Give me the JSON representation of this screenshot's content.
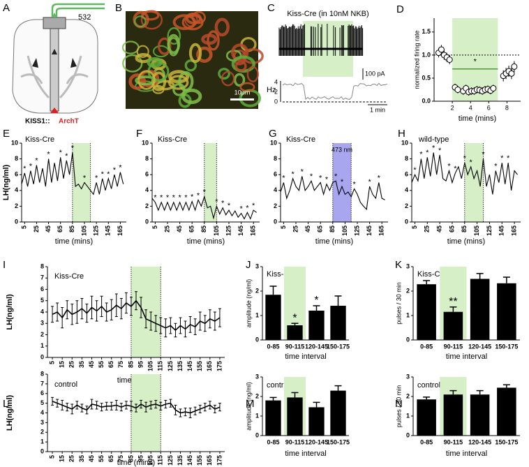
{
  "panels": {
    "A": {
      "letter": "A",
      "wavelength": "532",
      "label_gene": "KISS1::",
      "label_opsin": "ArchT"
    },
    "B": {
      "letter": "B",
      "scale": "10μm"
    },
    "C": {
      "letter": "C",
      "title": "Kiss-Cre (in 10nM NKB)",
      "current_scale": "100 pA",
      "rate_unit": "Hz",
      "rate_ticks": [
        4,
        2,
        0
      ],
      "time_scale": "1 min"
    }
  },
  "chart_data": [
    {
      "type": "scatter",
      "panel": "D",
      "ylabel": "normalized firing rate",
      "xlabel": "time (mins)",
      "xlim": [
        0,
        9.5
      ],
      "xticks": [
        2,
        4,
        6,
        8
      ],
      "ylim": [
        0,
        1.8
      ],
      "yticks": [
        {
          "value": 0,
          "label": "0.0"
        },
        0.5,
        {
          "value": 1,
          "label": "1.0"
        },
        1.5
      ],
      "shade": [
        2,
        7
      ],
      "shade_color": "#d6efc6",
      "dashed_line": 1,
      "mean_line": {
        "value": 0.7,
        "from": 2,
        "to": 7,
        "color": "#4a9a3a"
      },
      "annotations": [
        {
          "x": 4.5,
          "y": 0.85,
          "text": "*"
        }
      ],
      "x": [
        0.5,
        0.8,
        1.1,
        1.4,
        1.7,
        2.3,
        2.6,
        3.2,
        3.5,
        3.8,
        4.1,
        4.4,
        4.7,
        5.0,
        5.3,
        5.6,
        5.9,
        6.2,
        6.5,
        7.6,
        7.9,
        8.2,
        8.5,
        8.8
      ],
      "values": [
        1.05,
        1.12,
        1.0,
        0.95,
        0.9,
        0.3,
        0.25,
        0.22,
        0.28,
        0.2,
        0.22,
        0.22,
        0.25,
        0.24,
        0.22,
        0.25,
        0.26,
        0.23,
        0.28,
        0.55,
        0.6,
        0.65,
        0.6,
        0.75
      ],
      "errors": [
        0.1,
        0.1,
        0.1,
        0.1,
        0.1,
        0.08,
        0.08,
        0.08,
        0.08,
        0.08,
        0.08,
        0.08,
        0.08,
        0.08,
        0.08,
        0.08,
        0.08,
        0.08,
        0.08,
        0.12,
        0.12,
        0.12,
        0.12,
        0.12
      ]
    },
    {
      "type": "line",
      "panel": "E",
      "title": "Kiss-Cre",
      "ylabel": "LH(ng/ml)",
      "xlabel": "time (mins)",
      "color": "#000000",
      "xticks_vertical": true,
      "xlim": [
        0,
        175
      ],
      "xticks": [
        5,
        25,
        45,
        65,
        85,
        105,
        125,
        145,
        165
      ],
      "ylim": [
        0,
        10
      ],
      "yticks": [
        0,
        2,
        4,
        6,
        8,
        10
      ],
      "shade": [
        85,
        115
      ],
      "shade_color": "#d6efc6",
      "x": [
        0,
        5,
        10,
        15,
        20,
        25,
        30,
        35,
        40,
        45,
        50,
        55,
        60,
        65,
        70,
        75,
        80,
        85,
        90,
        95,
        100,
        105,
        110,
        115,
        120,
        125,
        130,
        135,
        140,
        145,
        150,
        155,
        160,
        165,
        170
      ],
      "values": [
        4.8,
        6.2,
        4.5,
        6.5,
        4.8,
        7.2,
        5.0,
        6.8,
        4.5,
        8.0,
        5.0,
        7.5,
        5.2,
        8.2,
        5.5,
        7.8,
        6.0,
        8.8,
        4.5,
        4.8,
        4.2,
        5.0,
        4.5,
        4.0,
        3.5,
        5.0,
        3.5,
        5.5,
        4.0,
        5.5,
        4.2,
        6.0,
        4.5,
        6.3,
        4.8
      ],
      "annotations": [
        {
          "x": 5,
          "text": "*"
        },
        {
          "x": 15,
          "text": "*"
        },
        {
          "x": 25,
          "text": "*"
        },
        {
          "x": 45,
          "text": "*"
        },
        {
          "x": 65,
          "text": "*"
        },
        {
          "x": 75,
          "text": "*"
        },
        {
          "x": 85,
          "text": "*"
        },
        {
          "x": 105,
          "text": "*"
        },
        {
          "x": 125,
          "text": "*"
        },
        {
          "x": 135,
          "text": "*"
        },
        {
          "x": 145,
          "text": "*"
        },
        {
          "x": 155,
          "text": "*"
        },
        {
          "x": 165,
          "text": "*"
        }
      ]
    },
    {
      "type": "line",
      "panel": "F",
      "title": "Kiss-Cre",
      "xlabel": "time (mins)",
      "color": "#000000",
      "xticks_vertical": true,
      "xlim": [
        0,
        175
      ],
      "xticks": [
        5,
        25,
        45,
        65,
        85,
        105,
        125,
        145,
        165
      ],
      "ylim": [
        0,
        10
      ],
      "yticks": [
        0,
        2,
        4,
        6,
        8,
        10
      ],
      "shade": [
        85,
        105
      ],
      "shade_color": "#d6efc6",
      "x": [
        0,
        5,
        10,
        15,
        20,
        25,
        30,
        35,
        40,
        45,
        50,
        55,
        60,
        65,
        70,
        75,
        80,
        85,
        90,
        95,
        100,
        105,
        110,
        115,
        120,
        125,
        130,
        135,
        140,
        145,
        150,
        155,
        160,
        165,
        170
      ],
      "values": [
        3.0,
        2.5,
        1.5,
        2.5,
        1.5,
        2.5,
        1.5,
        2.5,
        1.5,
        2.5,
        1.5,
        2.5,
        1.5,
        2.6,
        1.5,
        2.8,
        2.0,
        3.2,
        1.8,
        2.0,
        0.5,
        2.0,
        1.0,
        1.8,
        0.9,
        1.5,
        0.8,
        1.4,
        0.6,
        1.1,
        0.4,
        1.2,
        0.4,
        1.5,
        1.2
      ],
      "annotations": [
        {
          "x": 5,
          "text": "*"
        },
        {
          "x": 15,
          "text": "*"
        },
        {
          "x": 25,
          "text": "*"
        },
        {
          "x": 35,
          "text": "*"
        },
        {
          "x": 45,
          "text": "*"
        },
        {
          "x": 55,
          "text": "*"
        },
        {
          "x": 65,
          "text": "*"
        },
        {
          "x": 75,
          "text": "*"
        },
        {
          "x": 85,
          "text": "*"
        },
        {
          "x": 105,
          "text": "*"
        },
        {
          "x": 115,
          "text": "*"
        },
        {
          "x": 125,
          "text": "*"
        },
        {
          "x": 145,
          "text": "*"
        },
        {
          "x": 155,
          "text": "*"
        },
        {
          "x": 165,
          "text": "*"
        }
      ]
    },
    {
      "type": "line",
      "panel": "G",
      "title": "Kiss-Cre",
      "xlabel": "time (mins)",
      "color": "#000000",
      "xticks_vertical": true,
      "xlim": [
        0,
        175
      ],
      "xticks": [
        5,
        25,
        45,
        65,
        85,
        105,
        125,
        145,
        165
      ],
      "ylim": [
        0,
        10
      ],
      "yticks": [
        0,
        2,
        4,
        6,
        8,
        10
      ],
      "shade": [
        85,
        115
      ],
      "shade_color": "#a9a6f0",
      "shade_label": "473 nm",
      "x": [
        0,
        5,
        10,
        15,
        20,
        25,
        30,
        35,
        40,
        45,
        50,
        55,
        60,
        65,
        70,
        75,
        80,
        85,
        90,
        95,
        100,
        105,
        110,
        115,
        120,
        125,
        130,
        135,
        140,
        145,
        150,
        155,
        160,
        165,
        170
      ],
      "values": [
        3.8,
        5.0,
        3.0,
        4.0,
        5.5,
        4.5,
        4.0,
        5.8,
        4.0,
        4.5,
        5.2,
        4.0,
        4.5,
        5.0,
        3.5,
        4.8,
        4.0,
        5.0,
        5.2,
        3.5,
        4.5,
        3.5,
        3.8,
        3.2,
        4.2,
        3.5,
        2.5,
        2.0,
        1.6,
        4.5,
        3.5,
        3.0,
        5.0,
        3.0,
        2.8
      ],
      "annotations": [
        {
          "x": 5,
          "text": "*"
        },
        {
          "x": 20,
          "text": "*"
        },
        {
          "x": 35,
          "text": "*"
        },
        {
          "x": 50,
          "text": "*"
        },
        {
          "x": 65,
          "text": "*"
        },
        {
          "x": 75,
          "text": "*"
        },
        {
          "x": 90,
          "text": "*"
        },
        {
          "x": 100,
          "text": "*"
        },
        {
          "x": 120,
          "text": "*"
        },
        {
          "x": 145,
          "text": "*"
        },
        {
          "x": 160,
          "text": "*"
        }
      ]
    },
    {
      "type": "line",
      "panel": "H",
      "title": "wild-type",
      "xlabel": "time (mins)",
      "color": "#000000",
      "xticks_vertical": true,
      "xlim": [
        0,
        175
      ],
      "xticks": [
        5,
        25,
        45,
        65,
        85,
        105,
        125,
        145,
        165
      ],
      "ylim": [
        0,
        10
      ],
      "yticks": [
        0,
        2,
        4,
        6,
        8,
        10
      ],
      "shade": [
        85,
        115
      ],
      "shade_color": "#d6efc6",
      "x": [
        0,
        5,
        10,
        15,
        20,
        25,
        30,
        35,
        40,
        45,
        50,
        55,
        60,
        65,
        70,
        75,
        80,
        85,
        90,
        95,
        100,
        105,
        110,
        115,
        120,
        125,
        130,
        135,
        140,
        145,
        150,
        155,
        160,
        165,
        170
      ],
      "values": [
        5.0,
        6.0,
        5.2,
        8.0,
        5.5,
        8.2,
        5.8,
        8.8,
        6.0,
        8.5,
        5.5,
        5.2,
        6.5,
        5.0,
        6.2,
        7.0,
        5.5,
        7.5,
        6.0,
        7.0,
        5.5,
        6.5,
        4.5,
        8.0,
        4.5,
        6.0,
        3.5,
        6.5,
        5.0,
        7.5,
        4.8,
        7.5,
        4.0,
        6.5,
        6.0
      ],
      "annotations": [
        {
          "x": 5,
          "text": "*"
        },
        {
          "x": 15,
          "text": "*"
        },
        {
          "x": 25,
          "text": "*"
        },
        {
          "x": 35,
          "text": "*"
        },
        {
          "x": 45,
          "text": "*"
        },
        {
          "x": 60,
          "text": "*"
        },
        {
          "x": 70,
          "text": "*"
        },
        {
          "x": 85,
          "text": "*"
        },
        {
          "x": 95,
          "text": "*"
        },
        {
          "x": 115,
          "text": "*"
        },
        {
          "x": 135,
          "text": "*"
        },
        {
          "x": 145,
          "text": "*"
        },
        {
          "x": 155,
          "text": "*"
        }
      ]
    },
    {
      "type": "line",
      "panel": "I",
      "title": "Kiss-Cre",
      "ylabel": "LH(ng/ml)",
      "xlabel": "time (mins)",
      "color": "#000000",
      "xticks_vertical": true,
      "xlim": [
        0,
        180
      ],
      "xticks": [
        5,
        15,
        25,
        35,
        45,
        55,
        65,
        75,
        85,
        95,
        105,
        115,
        125,
        135,
        145,
        155,
        165,
        175
      ],
      "ylim": [
        0,
        8
      ],
      "yticks": [
        0,
        1,
        2,
        3,
        4,
        5,
        6,
        7,
        8
      ],
      "shade": [
        85,
        115
      ],
      "shade_color": "#d6efc6",
      "x": [
        5,
        10,
        15,
        20,
        25,
        30,
        35,
        40,
        45,
        50,
        55,
        60,
        65,
        70,
        75,
        80,
        85,
        90,
        95,
        100,
        105,
        110,
        115,
        120,
        125,
        130,
        135,
        140,
        145,
        150,
        155,
        160,
        165,
        170,
        175
      ],
      "values": [
        3.8,
        4.0,
        3.5,
        4.2,
        3.8,
        4.0,
        4.3,
        3.9,
        4.4,
        4.1,
        4.5,
        4.0,
        4.2,
        4.6,
        4.3,
        4.8,
        4.5,
        5.0,
        4.4,
        3.4,
        3.2,
        3.0,
        2.8,
        2.6,
        2.8,
        2.4,
        2.8,
        2.5,
        2.9,
        2.7,
        3.2,
        3.0,
        3.4,
        3.2,
        3.5
      ],
      "errors": [
        0.7,
        0.8,
        0.9,
        0.8,
        0.9,
        1.0,
        0.9,
        0.8,
        1.0,
        0.9,
        0.9,
        0.8,
        0.9,
        1.0,
        0.9,
        0.9,
        0.8,
        0.8,
        0.9,
        0.8,
        0.8,
        0.7,
        0.7,
        0.8,
        0.7,
        0.6,
        0.7,
        0.7,
        0.7,
        0.7,
        0.8,
        0.7,
        0.8,
        0.8,
        0.8
      ]
    },
    {
      "type": "bar",
      "panel": "J",
      "title": "Kiss-Cre",
      "ylabel": "amplitude (ng/ml)",
      "xlabel": "time interval",
      "color": "#000000",
      "categories": [
        "0-85",
        "90-115",
        "120-145",
        "150-175"
      ],
      "values": [
        1.85,
        0.6,
        1.2,
        1.4
      ],
      "errors": [
        0.35,
        0.08,
        0.2,
        0.4
      ],
      "ylim": [
        0,
        3
      ],
      "yticks": [
        0,
        1,
        2,
        3
      ],
      "shade_category": 1,
      "shade_color": "#d6efc6",
      "annotations": [
        {
          "at": 1,
          "text": "*"
        },
        {
          "at": 2,
          "text": "*"
        }
      ]
    },
    {
      "type": "bar",
      "panel": "K",
      "title": "Kiss-Cre",
      "ylabel": "pulses / 30 min",
      "xlabel": "time interval",
      "color": "#000000",
      "categories": [
        "0-85",
        "90-115",
        "120-145",
        "150-175"
      ],
      "values": [
        2.28,
        1.15,
        2.5,
        2.32
      ],
      "errors": [
        0.15,
        0.2,
        0.22,
        0.25
      ],
      "ylim": [
        0,
        3
      ],
      "yticks": [
        0,
        1,
        2,
        3
      ],
      "shade_category": 1,
      "shade_color": "#d6efc6",
      "annotations": [
        {
          "at": 1,
          "text": "**"
        }
      ]
    },
    {
      "type": "line",
      "panel": "L",
      "title": "control",
      "ylabel": "LH(ng/ml)",
      "xlabel": "time (mins)",
      "color": "#000000",
      "xticks_vertical": true,
      "xlim": [
        0,
        180
      ],
      "xticks": [
        5,
        15,
        25,
        35,
        45,
        55,
        65,
        75,
        85,
        95,
        105,
        115,
        125,
        135,
        145,
        155,
        165,
        175
      ],
      "ylim": [
        0,
        8
      ],
      "yticks": [
        0,
        1,
        2,
        3,
        4,
        5,
        6,
        7,
        8
      ],
      "shade": [
        85,
        115
      ],
      "shade_color": "#d6efc6",
      "x": [
        5,
        10,
        15,
        20,
        25,
        30,
        35,
        40,
        45,
        50,
        55,
        60,
        65,
        70,
        75,
        80,
        85,
        90,
        95,
        100,
        105,
        110,
        115,
        120,
        125,
        130,
        135,
        140,
        145,
        150,
        155,
        160,
        165,
        170,
        175
      ],
      "values": [
        5.2,
        5.0,
        4.8,
        4.6,
        4.4,
        4.8,
        4.5,
        4.3,
        4.9,
        4.8,
        4.6,
        4.7,
        4.7,
        4.8,
        4.6,
        4.8,
        4.7,
        4.5,
        4.9,
        4.6,
        4.8,
        4.9,
        4.7,
        4.9,
        5.0,
        4.3,
        4.0,
        4.1,
        4.0,
        4.2,
        4.4,
        4.6,
        4.8,
        4.4,
        4.6
      ],
      "errors": [
        0.4,
        0.4,
        0.5,
        0.4,
        0.5,
        0.4,
        0.4,
        0.4,
        0.5,
        0.4,
        0.4,
        0.4,
        0.4,
        0.5,
        0.4,
        0.4,
        0.5,
        0.4,
        0.4,
        0.5,
        0.4,
        0.4,
        0.4,
        0.4,
        0.4,
        0.5,
        0.4,
        0.4,
        0.5,
        0.4,
        0.4,
        0.4,
        0.4,
        0.4,
        0.4
      ]
    },
    {
      "type": "bar",
      "panel": "M",
      "title": "control",
      "ylabel": "amplitude (ng/ml)",
      "xlabel": "time interval",
      "color": "#000000",
      "categories": [
        "0-85",
        "90-115",
        "120-145",
        "150-175"
      ],
      "values": [
        1.8,
        1.95,
        1.45,
        2.3
      ],
      "errors": [
        0.15,
        0.25,
        0.25,
        0.25
      ],
      "ylim": [
        0,
        3
      ],
      "yticks": [
        0,
        1,
        2,
        3
      ],
      "shade_category": 1,
      "shade_color": "#d6efc6"
    },
    {
      "type": "bar",
      "panel": "N",
      "title": "control",
      "ylabel": "pulses / 30 min",
      "xlabel": "time interval",
      "color": "#000000",
      "categories": [
        "0-85",
        "90-115",
        "120-145",
        "150-175"
      ],
      "values": [
        1.85,
        2.1,
        2.1,
        2.45
      ],
      "errors": [
        0.12,
        0.2,
        0.2,
        0.15
      ],
      "ylim": [
        0,
        3
      ],
      "yticks": [
        0,
        1,
        2,
        3
      ],
      "shade_category": 1,
      "shade_color": "#d6efc6"
    }
  ]
}
